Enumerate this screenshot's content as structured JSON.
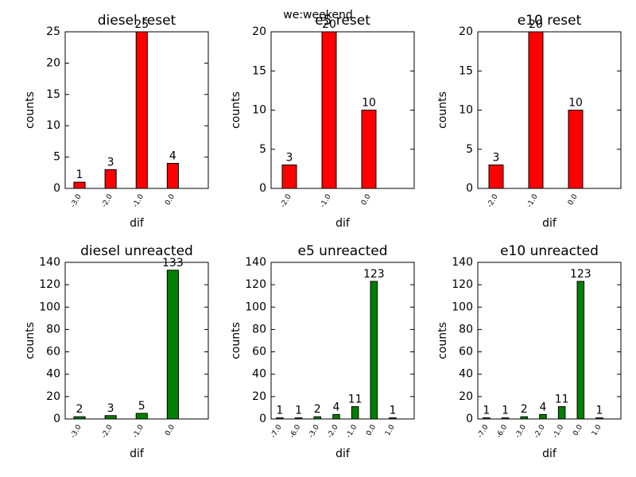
{
  "title": "we:weekend",
  "chart_data": [
    {
      "type": "bar",
      "title": "diesel reset",
      "x_label": "dif",
      "y_label": "counts",
      "categories": [
        "-3.0",
        "-2.0",
        "-1.0",
        "0.0"
      ],
      "values": [
        1,
        3,
        25,
        4
      ],
      "color": "#ff0000",
      "ylim": [
        0,
        25
      ],
      "yticks": [
        0,
        5,
        10,
        15,
        20,
        25
      ]
    },
    {
      "type": "bar",
      "title": "e5 reset",
      "x_label": "dif",
      "y_label": "counts",
      "categories": [
        "-2.0",
        "-1.0",
        "0.0"
      ],
      "values": [
        3,
        20,
        10
      ],
      "color": "#ff0000",
      "ylim": [
        0,
        20
      ],
      "yticks": [
        0,
        5,
        10,
        15,
        20
      ]
    },
    {
      "type": "bar",
      "title": "e10 reset",
      "x_label": "dif",
      "y_label": "counts",
      "categories": [
        "-2.0",
        "-1.0",
        "0.0"
      ],
      "values": [
        3,
        20,
        10
      ],
      "color": "#ff0000",
      "ylim": [
        0,
        20
      ],
      "yticks": [
        0,
        5,
        10,
        15,
        20
      ]
    },
    {
      "type": "bar",
      "title": "diesel unreacted",
      "x_label": "dif",
      "y_label": "counts",
      "categories": [
        "-3.0",
        "-2.0",
        "-1.0",
        "0.0"
      ],
      "values": [
        2,
        3,
        5,
        133
      ],
      "color": "#008000",
      "ylim": [
        0,
        140
      ],
      "yticks": [
        0,
        20,
        40,
        60,
        80,
        100,
        120,
        140
      ]
    },
    {
      "type": "bar",
      "title": "e5 unreacted",
      "x_label": "dif",
      "y_label": "counts",
      "categories": [
        "-7.0",
        "-6.0",
        "-3.0",
        "-2.0",
        "-1.0",
        "0.0",
        "1.0"
      ],
      "values": [
        1,
        1,
        2,
        4,
        11,
        123,
        1
      ],
      "color": "#008000",
      "ylim": [
        0,
        140
      ],
      "yticks": [
        0,
        20,
        40,
        60,
        80,
        100,
        120,
        140
      ]
    },
    {
      "type": "bar",
      "title": "e10 unreacted",
      "x_label": "dif",
      "y_label": "counts",
      "categories": [
        "-7.0",
        "-6.0",
        "-3.0",
        "-2.0",
        "-1.0",
        "0.0",
        "1.0"
      ],
      "values": [
        1,
        1,
        2,
        4,
        11,
        123,
        1
      ],
      "color": "#008000",
      "ylim": [
        0,
        140
      ],
      "yticks": [
        0,
        20,
        40,
        60,
        80,
        100,
        120,
        140
      ]
    }
  ]
}
